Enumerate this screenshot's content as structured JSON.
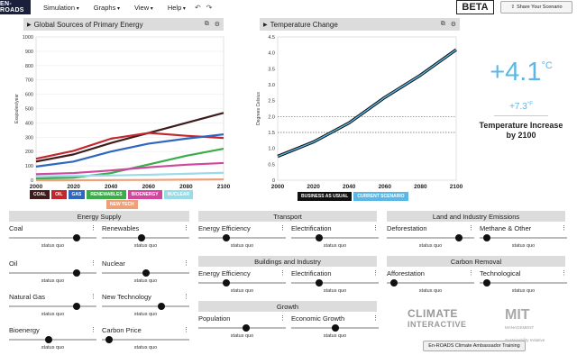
{
  "app": {
    "logo": "EN-ROADS",
    "beta": "BETA",
    "share": "Share Your Scenario"
  },
  "menu": [
    {
      "label": "Simulation"
    },
    {
      "label": "Graphs"
    },
    {
      "label": "View"
    },
    {
      "label": "Help"
    }
  ],
  "left_chart": {
    "title": "Global Sources of Primary Energy",
    "ylabel": "Exajoules/year"
  },
  "right_chart": {
    "title": "Temperature Change",
    "ylabel": "Degrees Celsius"
  },
  "temperature": {
    "big": "+4.1",
    "big_unit": "°C",
    "small": "+7.3",
    "small_unit": "°F",
    "label": "Temperature Increase by 2100"
  },
  "legend_left": [
    {
      "label": "COAL",
      "color": "#3e1c1c"
    },
    {
      "label": "OIL",
      "color": "#c0282e"
    },
    {
      "label": "GAS",
      "color": "#2e66c0"
    },
    {
      "label": "RENEWABLES",
      "color": "#3cac4a"
    },
    {
      "label": "BIOENERGY",
      "color": "#d0479c"
    },
    {
      "label": "NUCLEAR",
      "color": "#9adbe8"
    },
    {
      "label": "NEW TECH",
      "color": "#f0a078"
    }
  ],
  "legend_right": [
    {
      "label": "BUSINESS AS USUAL",
      "color": "#111111"
    },
    {
      "label": "CURRENT SCENARIO",
      "color": "#5bb7e6"
    }
  ],
  "chart_data": [
    {
      "type": "line",
      "title": "Global Sources of Primary Energy",
      "ylabel": "Exajoules/year",
      "xlim": [
        2000,
        2100
      ],
      "ylim": [
        0,
        1000
      ],
      "x": [
        2000,
        2020,
        2040,
        2060,
        2080,
        2100
      ],
      "xticks": [
        "2000",
        "2020",
        "2040",
        "2060",
        "2080",
        "2100"
      ],
      "yticks": [
        "0",
        "100",
        "200",
        "300",
        "400",
        "500",
        "600",
        "700",
        "800",
        "900",
        "1000"
      ],
      "series": [
        {
          "name": "COAL",
          "color": "#3e1c1c",
          "values": [
            130,
            180,
            260,
            330,
            400,
            470
          ]
        },
        {
          "name": "OIL",
          "color": "#c0282e",
          "values": [
            150,
            205,
            290,
            330,
            310,
            295
          ]
        },
        {
          "name": "GAS",
          "color": "#2e66c0",
          "values": [
            95,
            130,
            200,
            255,
            290,
            320
          ]
        },
        {
          "name": "RENEWABLES",
          "color": "#3cac4a",
          "values": [
            12,
            18,
            50,
            110,
            170,
            220
          ]
        },
        {
          "name": "BIOENERGY",
          "color": "#d0479c",
          "values": [
            42,
            50,
            68,
            90,
            108,
            120
          ]
        },
        {
          "name": "NUCLEAR",
          "color": "#9adbe8",
          "values": [
            28,
            30,
            33,
            38,
            45,
            52
          ]
        },
        {
          "name": "NEW TECH",
          "color": "#f0a078",
          "values": [
            0,
            0,
            1,
            2,
            4,
            6
          ]
        }
      ]
    },
    {
      "type": "line",
      "title": "Temperature Change",
      "ylabel": "Degrees Celsius",
      "xlim": [
        2000,
        2100
      ],
      "ylim": [
        0,
        4.5
      ],
      "x": [
        2000,
        2020,
        2040,
        2060,
        2080,
        2100
      ],
      "xticks": [
        "2000",
        "2020",
        "2040",
        "2060",
        "2080",
        "2100"
      ],
      "yticks": [
        "0",
        "0.5",
        "1.0",
        "1.5",
        "2.0",
        "2.5",
        "3.0",
        "3.5",
        "4.0",
        "4.5"
      ],
      "reference_lines": [
        1.5,
        2.0
      ],
      "series": [
        {
          "name": "BUSINESS AS USUAL",
          "color": "#111111",
          "values": [
            0.75,
            1.2,
            1.8,
            2.6,
            3.3,
            4.1
          ]
        },
        {
          "name": "CURRENT SCENARIO",
          "color": "#5bb7e6",
          "values": [
            0.75,
            1.2,
            1.8,
            2.6,
            3.3,
            4.1
          ]
        }
      ]
    }
  ],
  "sections": [
    {
      "title": "Energy Supply"
    },
    {
      "title": "Transport"
    },
    {
      "title": "Land and Industry Emissions"
    },
    {
      "title": "Buildings and Industry"
    },
    {
      "title": "Carbon Removal"
    },
    {
      "title": "Growth"
    }
  ],
  "sliders": [
    {
      "label": "Coal",
      "status": "status quo",
      "pos": 0.8
    },
    {
      "label": "Renewables",
      "status": "status quo",
      "pos": 0.45
    },
    {
      "label": "Oil",
      "status": "status quo",
      "pos": 0.8
    },
    {
      "label": "Nuclear",
      "status": "status quo",
      "pos": 0.5
    },
    {
      "label": "Natural Gas",
      "status": "status quo",
      "pos": 0.8
    },
    {
      "label": "New Technology",
      "status": "status quo",
      "pos": 0.7
    },
    {
      "label": "Bioenergy",
      "status": "status quo",
      "pos": 0.45
    },
    {
      "label": "Carbon Price",
      "status": "status quo",
      "pos": 0.05
    },
    {
      "label": "Energy Efficiency",
      "status": "status quo",
      "pos": 0.3
    },
    {
      "label": "Electrification",
      "status": "status quo",
      "pos": 0.3
    },
    {
      "label": "Energy Efficiency",
      "status": "status quo",
      "pos": 0.3
    },
    {
      "label": "Electrification",
      "status": "status quo",
      "pos": 0.3
    },
    {
      "label": "Population",
      "status": "status quo",
      "pos": 0.55
    },
    {
      "label": "Economic Growth",
      "status": "status quo",
      "pos": 0.5
    },
    {
      "label": "Deforestation",
      "status": "status quo",
      "pos": 0.85
    },
    {
      "label": "Methane & Other",
      "status": "status quo",
      "pos": 0.05
    },
    {
      "label": "Afforestation",
      "status": "status quo",
      "pos": 0.05
    },
    {
      "label": "Technological",
      "status": "status quo",
      "pos": 0.05
    }
  ],
  "footer": {
    "ci_line1": "CLIMATE",
    "ci_line2": "INTERACTIVE",
    "mit": "MIT",
    "mit_sub": "Sustainability Initiative",
    "mit_sub0": "MANAGEMENT",
    "ambassador": "En-ROADS Climate Ambassador Training"
  }
}
